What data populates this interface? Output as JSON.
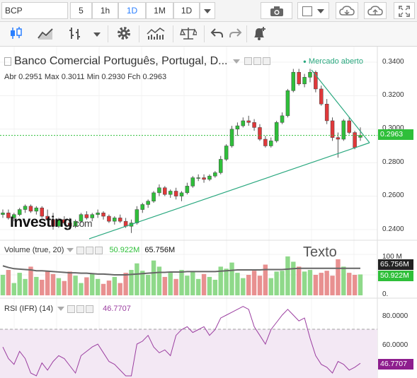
{
  "toolbar1": {
    "symbol": "BCP",
    "intervals": [
      "5",
      "1h",
      "1D",
      "1M",
      "1D"
    ],
    "active_interval_index": 2
  },
  "instrument": {
    "name": "Banco Comercial Português, Portugal, D...",
    "market_status": "Mercado aberto",
    "ohlc_line": "Abr  0.2951  Max  0.3011  Min  0.2930  Fch  0.2963",
    "last_price": "0.2963",
    "logo_text": "Investing",
    "logo_suffix": ".com"
  },
  "price_axis": [
    "0.3400",
    "0.3200",
    "0.3000",
    "0.2800",
    "0.2600",
    "0.2400"
  ],
  "volume_panel": {
    "title": "Volume (true, 20)",
    "value_green": "50.922M",
    "value_dark": "65.756M",
    "annotation": "Texto",
    "axis": [
      "100 M",
      "50 M",
      "0."
    ],
    "badge_dark": "65.756M",
    "badge_green": "50.922M"
  },
  "rsi_panel": {
    "title": "RSI (IFR) (14)",
    "value": "46.7707",
    "axis": [
      "80.0000",
      "60.0000"
    ],
    "badge": "46.7707"
  },
  "colors": {
    "up": "#2fbf3a",
    "down": "#e0383a",
    "trend": "#2aa87f",
    "rsi": "#9b3ea0",
    "accent": "#2a7fff"
  },
  "chart_data": {
    "type": "candlestick",
    "candles": [
      [
        0.249,
        0.252,
        0.247,
        0.25
      ],
      [
        0.25,
        0.252,
        0.246,
        0.247
      ],
      [
        0.247,
        0.25,
        0.245,
        0.249
      ],
      [
        0.249,
        0.253,
        0.248,
        0.252
      ],
      [
        0.252,
        0.255,
        0.25,
        0.254
      ],
      [
        0.254,
        0.255,
        0.25,
        0.251
      ],
      [
        0.251,
        0.254,
        0.249,
        0.253
      ],
      [
        0.253,
        0.254,
        0.247,
        0.248
      ],
      [
        0.248,
        0.252,
        0.245,
        0.246
      ],
      [
        0.246,
        0.25,
        0.24,
        0.242
      ],
      [
        0.242,
        0.247,
        0.241,
        0.246
      ],
      [
        0.246,
        0.248,
        0.243,
        0.244
      ],
      [
        0.244,
        0.247,
        0.24,
        0.242
      ],
      [
        0.242,
        0.246,
        0.241,
        0.245
      ],
      [
        0.245,
        0.25,
        0.244,
        0.249
      ],
      [
        0.249,
        0.251,
        0.246,
        0.247
      ],
      [
        0.247,
        0.25,
        0.245,
        0.249
      ],
      [
        0.249,
        0.252,
        0.247,
        0.25
      ],
      [
        0.25,
        0.251,
        0.246,
        0.248
      ],
      [
        0.248,
        0.249,
        0.244,
        0.245
      ],
      [
        0.245,
        0.248,
        0.243,
        0.247
      ],
      [
        0.247,
        0.249,
        0.244,
        0.245
      ],
      [
        0.245,
        0.247,
        0.241,
        0.242
      ],
      [
        0.242,
        0.246,
        0.238,
        0.244
      ],
      [
        0.244,
        0.254,
        0.243,
        0.252
      ],
      [
        0.252,
        0.256,
        0.25,
        0.255
      ],
      [
        0.255,
        0.258,
        0.253,
        0.257
      ],
      [
        0.257,
        0.263,
        0.256,
        0.262
      ],
      [
        0.262,
        0.267,
        0.26,
        0.265
      ],
      [
        0.265,
        0.266,
        0.26,
        0.261
      ],
      [
        0.261,
        0.264,
        0.259,
        0.263
      ],
      [
        0.263,
        0.265,
        0.258,
        0.26
      ],
      [
        0.26,
        0.263,
        0.257,
        0.262
      ],
      [
        0.262,
        0.268,
        0.261,
        0.266
      ],
      [
        0.266,
        0.272,
        0.265,
        0.271
      ],
      [
        0.271,
        0.273,
        0.269,
        0.271
      ],
      [
        0.271,
        0.273,
        0.268,
        0.27
      ],
      [
        0.27,
        0.273,
        0.269,
        0.272
      ],
      [
        0.272,
        0.275,
        0.271,
        0.274
      ],
      [
        0.274,
        0.284,
        0.273,
        0.282
      ],
      [
        0.282,
        0.291,
        0.281,
        0.29
      ],
      [
        0.29,
        0.302,
        0.289,
        0.3
      ],
      [
        0.3,
        0.304,
        0.296,
        0.302
      ],
      [
        0.302,
        0.307,
        0.301,
        0.305
      ],
      [
        0.305,
        0.308,
        0.302,
        0.304
      ],
      [
        0.304,
        0.306,
        0.299,
        0.301
      ],
      [
        0.301,
        0.303,
        0.293,
        0.294
      ],
      [
        0.294,
        0.296,
        0.289,
        0.29
      ],
      [
        0.29,
        0.295,
        0.289,
        0.293
      ],
      [
        0.293,
        0.305,
        0.292,
        0.304
      ],
      [
        0.304,
        0.31,
        0.303,
        0.308
      ],
      [
        0.308,
        0.324,
        0.307,
        0.323
      ],
      [
        0.323,
        0.336,
        0.322,
        0.334
      ],
      [
        0.334,
        0.336,
        0.326,
        0.327
      ],
      [
        0.327,
        0.333,
        0.325,
        0.331
      ],
      [
        0.331,
        0.336,
        0.328,
        0.334
      ],
      [
        0.334,
        0.335,
        0.322,
        0.324
      ],
      [
        0.324,
        0.326,
        0.314,
        0.315
      ],
      [
        0.315,
        0.318,
        0.303,
        0.305
      ],
      [
        0.305,
        0.307,
        0.293,
        0.295
      ],
      [
        0.295,
        0.298,
        0.283,
        0.294
      ],
      [
        0.294,
        0.306,
        0.293,
        0.305
      ],
      [
        0.305,
        0.307,
        0.297,
        0.298
      ],
      [
        0.298,
        0.299,
        0.288,
        0.289
      ],
      [
        0.2951,
        0.3011,
        0.293,
        0.2963
      ]
    ],
    "volume": [
      50,
      62,
      30,
      55,
      40,
      70,
      45,
      38,
      60,
      52,
      42,
      35,
      58,
      48,
      30,
      44,
      52,
      40,
      28,
      36,
      45,
      30,
      55,
      62,
      78,
      60,
      50,
      85,
      70,
      45,
      55,
      40,
      62,
      48,
      58,
      40,
      52,
      45,
      38,
      70,
      65,
      80,
      55,
      42,
      50,
      60,
      48,
      75,
      42,
      58,
      60,
      95,
      82,
      70,
      58,
      62,
      50,
      55,
      60,
      48,
      88,
      70,
      55,
      50,
      51
    ],
    "volume_ma": [
      72,
      68,
      65,
      64,
      63,
      62,
      60,
      60,
      59,
      58,
      57,
      56,
      55,
      55,
      54,
      54,
      53,
      52,
      52,
      51,
      50,
      50,
      50,
      51,
      52,
      53,
      54,
      55,
      56,
      56,
      57,
      57,
      57,
      58,
      58,
      58,
      58,
      58,
      58,
      59,
      60,
      61,
      62,
      62,
      62,
      62,
      62,
      63,
      63,
      63,
      63,
      64,
      65,
      66,
      66,
      66,
      66,
      66,
      66,
      66,
      66,
      66,
      66,
      66,
      66
    ],
    "rsi": [
      58,
      50,
      46,
      55,
      50,
      40,
      38,
      47,
      42,
      48,
      52,
      50,
      45,
      40,
      52,
      55,
      58,
      60,
      54,
      48,
      46,
      42,
      38,
      34,
      60,
      62,
      66,
      58,
      54,
      56,
      52,
      66,
      70,
      72,
      68,
      70,
      72,
      66,
      70,
      78,
      80,
      82,
      84,
      86,
      84,
      72,
      66,
      60,
      70,
      75,
      80,
      84,
      80,
      76,
      78,
      64,
      52,
      46,
      44,
      40,
      48,
      46,
      42,
      44,
      46.77
    ]
  }
}
